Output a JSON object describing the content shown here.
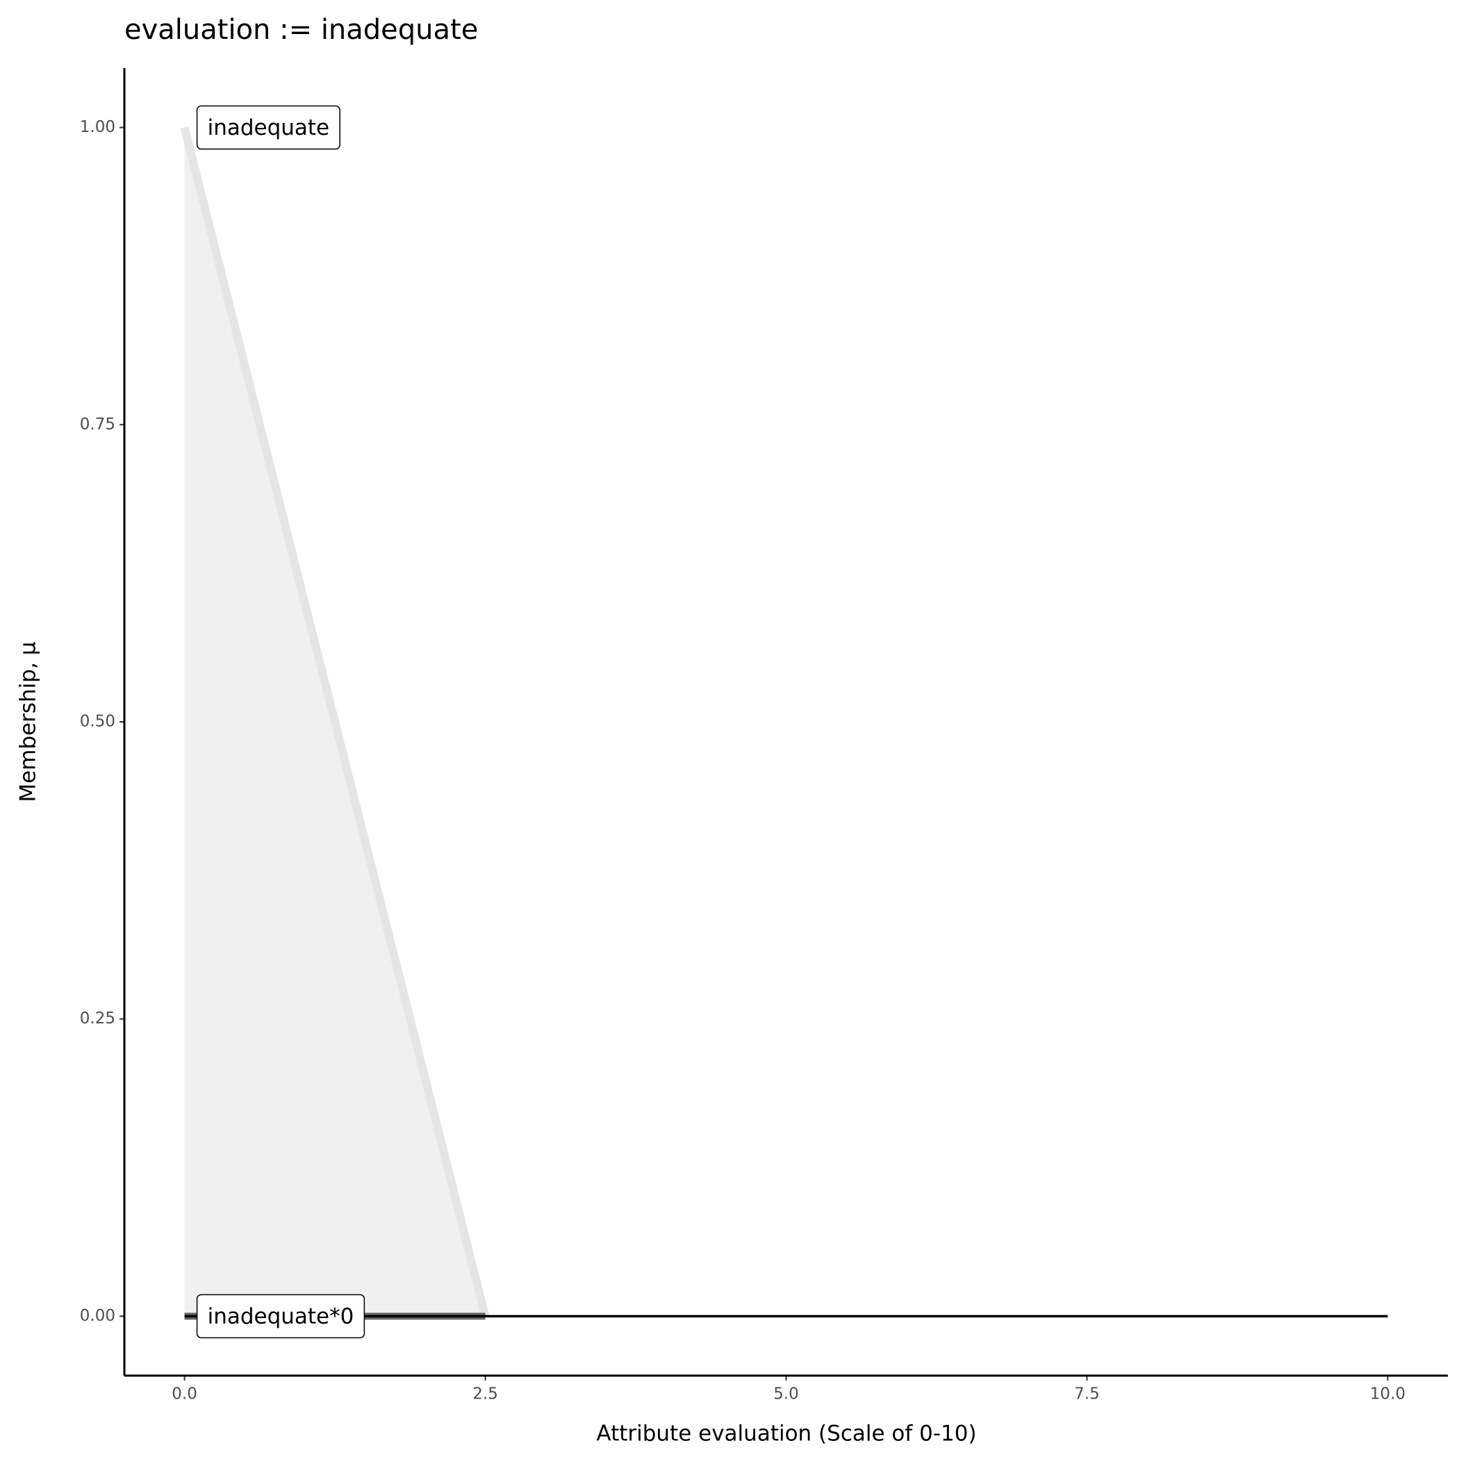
{
  "chart_data": {
    "type": "line",
    "title": "evaluation := inadequate",
    "x_label": "Attribute evaluation (Scale of 0-10)",
    "y_label": "Membership, μ",
    "xlim": [
      -0.5,
      10.5
    ],
    "ylim": [
      -0.05,
      1.05
    ],
    "xticks": [
      {
        "value": 0,
        "label": "0.0"
      },
      2.5,
      {
        "value": 5,
        "label": "5.0"
      },
      7.5,
      {
        "value": 10,
        "label": "10.0"
      }
    ],
    "yticks": [
      {
        "value": 0,
        "label": "0.00"
      },
      0.25,
      {
        "value": 0.5,
        "label": "0.50"
      },
      0.75,
      {
        "value": 1,
        "label": "1.00"
      }
    ],
    "grid": false,
    "series": [
      {
        "name": "inadequate",
        "color": "#e5e5e5",
        "fill": "#f0f0f0",
        "x": [
          0,
          2.5
        ],
        "values": [
          1,
          0
        ]
      },
      {
        "name": "inadequate*0",
        "color": "#666666",
        "x": [
          0,
          2.5
        ],
        "values": [
          0,
          0
        ]
      },
      {
        "color": "#000000",
        "x": [
          0,
          10
        ],
        "values": [
          0,
          0
        ]
      }
    ]
  }
}
